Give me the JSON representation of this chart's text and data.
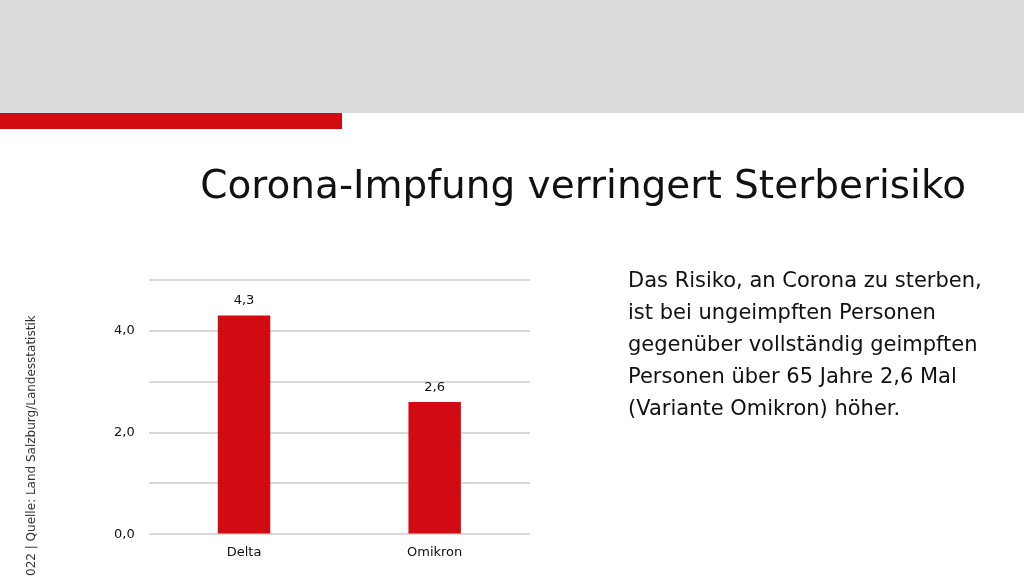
{
  "chart_data": {
    "type": "bar",
    "title": "Corona-Impfung verringert Sterberisiko",
    "categories": [
      "Delta",
      "Omikron"
    ],
    "values": [
      4.3,
      2.6
    ],
    "value_labels": [
      "4,3",
      "2,6"
    ],
    "color": "#d20a11",
    "ylim": [
      0,
      5
    ],
    "yticks": [
      {
        "value": 0,
        "label": "0,0"
      },
      {
        "value": 1,
        "label": null
      },
      {
        "value": 2,
        "label": "2,0"
      },
      {
        "value": 3,
        "label": null
      },
      {
        "value": 4,
        "label": "4,0"
      },
      {
        "value": 5,
        "label": null
      }
    ],
    "grid": "y",
    "legend": false,
    "annotations": [
      "Das Risiko, an Corona zu sterben, ist bei ungeimpften Personen gegenüber vollständig geimpften Personen über 65 Jahre 2,6 Mal (Variante Omikron) höher.",
      "022 | Quelle: Land Salzburg/Landesstatistik"
    ]
  }
}
